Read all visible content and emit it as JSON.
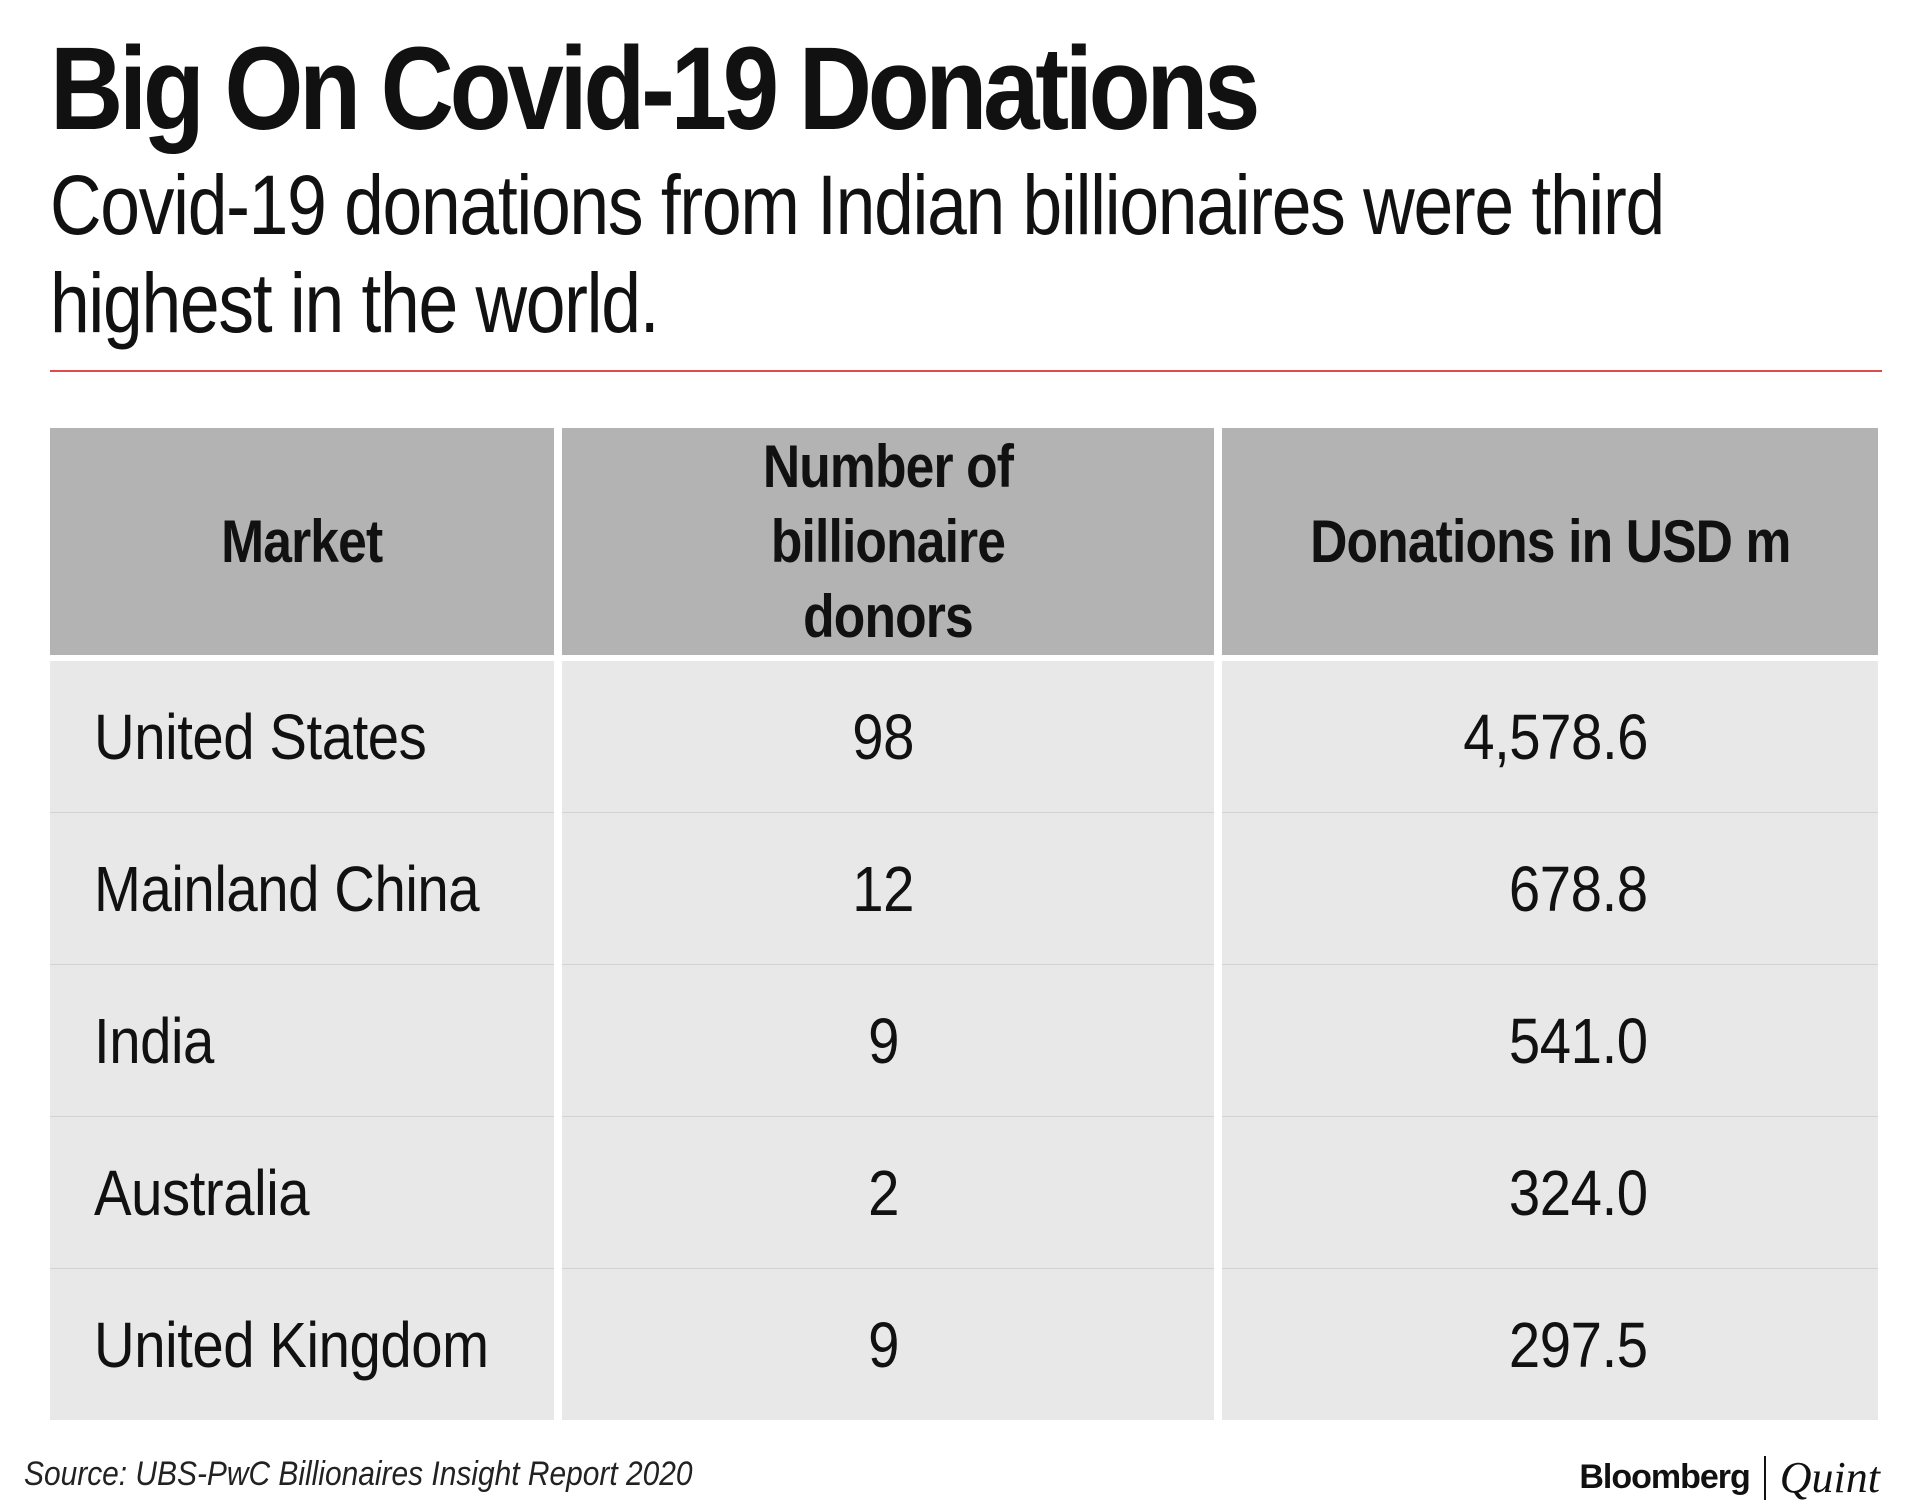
{
  "title": "Big On Covid-19 Donations",
  "subtitle": "Covid-19 donations from Indian billionaires were third highest in the world.",
  "accent_color": "#e04b4b",
  "header_color": "#b3b3b3",
  "row_color": "#e8e8e8",
  "source": "Source: UBS-PwC Billionaires Insight Report 2020",
  "brand": {
    "primary": "Bloomberg",
    "secondary": "Quint"
  },
  "chart_data": {
    "type": "table",
    "columns": [
      "Market",
      "Number of billionaire donors",
      "Donations in USD m"
    ],
    "rows": [
      {
        "market": "United States",
        "donors": "98",
        "donations": "4,578.6"
      },
      {
        "market": "Mainland China",
        "donors": "12",
        "donations": "678.8"
      },
      {
        "market": "India",
        "donors": "9",
        "donations": "541.0"
      },
      {
        "market": "Australia",
        "donors": "2",
        "donations": "324.0"
      },
      {
        "market": "United Kingdom",
        "donors": "9",
        "donations": "297.5"
      }
    ]
  }
}
